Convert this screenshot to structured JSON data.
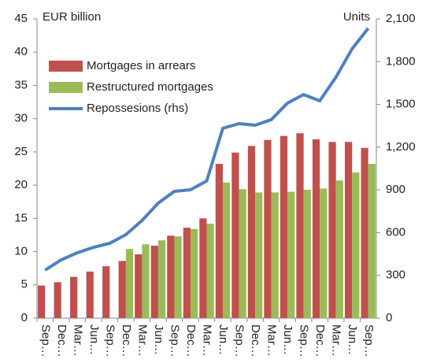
{
  "chart_data": {
    "type": "combo",
    "y_label": "EUR billion",
    "y2_label": "Units",
    "categories": [
      "Sep…",
      "Dec…",
      "Mar…",
      "Jun…",
      "Sep…",
      "Dec…",
      "Mar…",
      "Jun…",
      "Sep…",
      "Dec…",
      "Mar…",
      "Jun…",
      "Sep…",
      "Dec…",
      "Mar…",
      "Jun…",
      "Sep…",
      "Dec…",
      "Mar…",
      "Jun…",
      "Sep…"
    ],
    "series": [
      {
        "name": "Mortgages in arrears",
        "type": "bar",
        "color": "#c0504d",
        "values": [
          4.9,
          5.4,
          6.2,
          7.0,
          7.8,
          8.6,
          9.6,
          10.9,
          12.4,
          13.6,
          15.0,
          23.2,
          24.9,
          25.9,
          26.8,
          27.4,
          27.8,
          26.9,
          26.5,
          26.5,
          25.6
        ]
      },
      {
        "name": "Restructured mortgages",
        "type": "bar",
        "color": "#9bbb59",
        "values": [
          null,
          null,
          null,
          null,
          null,
          10.4,
          11.1,
          11.7,
          12.3,
          13.4,
          14.2,
          20.4,
          19.4,
          18.9,
          18.9,
          19.0,
          19.3,
          19.5,
          20.7,
          21.9,
          23.2
        ]
      },
      {
        "name": "Repossesions (rhs)",
        "type": "line",
        "axis": "y2",
        "color": "#4f81bd",
        "values": [
          337,
          409,
          459,
          497,
          525,
          586,
          685,
          807,
          890,
          901,
          962,
          1332,
          1365,
          1354,
          1393,
          1509,
          1569,
          1525,
          1691,
          1890,
          2034
        ]
      }
    ],
    "ylim": [
      0,
      45
    ],
    "yticks": [
      0,
      5,
      10,
      15,
      20,
      25,
      30,
      35,
      40,
      45
    ],
    "y2lim": [
      0,
      2100
    ],
    "y2ticks": [
      0,
      300,
      600,
      900,
      {
        "value": 1200,
        "label": "1,200"
      },
      {
        "value": 1500,
        "label": "1,500"
      },
      {
        "value": 1800,
        "label": "1,800"
      },
      {
        "value": 2100,
        "label": "2,100"
      }
    ],
    "legend": "upper left"
  }
}
